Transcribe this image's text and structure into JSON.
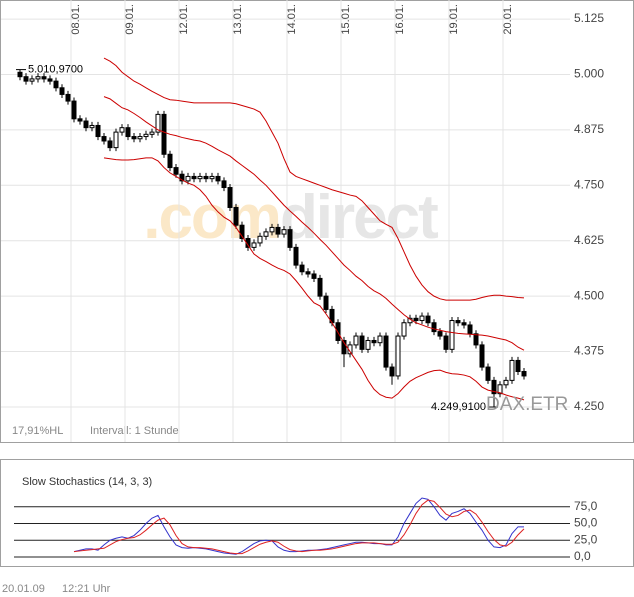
{
  "chart_data": [
    {
      "type": "candlestick",
      "categories": [
        null,
        null,
        null,
        null,
        null,
        null,
        null,
        null,
        null,
        "08.01.",
        null,
        null,
        null,
        null,
        null,
        null,
        null,
        null,
        "09.01.",
        null,
        null,
        null,
        null,
        null,
        null,
        null,
        null,
        "12.01.",
        null,
        null,
        null,
        null,
        null,
        null,
        null,
        null,
        "13.01.",
        null,
        null,
        null,
        null,
        null,
        null,
        null,
        null,
        "14.01.",
        null,
        null,
        null,
        null,
        null,
        null,
        null,
        null,
        "15.01.",
        null,
        null,
        null,
        null,
        null,
        null,
        null,
        null,
        "16.01.",
        null,
        null,
        null,
        null,
        null,
        null,
        null,
        null,
        "19.01.",
        null,
        null,
        null,
        null,
        null,
        null,
        null,
        null,
        "20.01.",
        null,
        null,
        null
      ],
      "open": [
        5005,
        4995,
        4985,
        4990,
        4995,
        4990,
        4985,
        4970,
        4955,
        4940,
        4900,
        4895,
        4880,
        4885,
        4860,
        4850,
        4835,
        4870,
        4880,
        4860,
        4855,
        4860,
        4865,
        4870,
        4910,
        4820,
        4790,
        4775,
        4760,
        4770,
        4765,
        4770,
        4765,
        4770,
        4760,
        4745,
        4700,
        4660,
        4630,
        4610,
        4620,
        4635,
        4645,
        4655,
        4640,
        4650,
        4610,
        4570,
        4555,
        4550,
        4540,
        4500,
        4470,
        4440,
        4400,
        4370,
        4390,
        4410,
        4380,
        4400,
        4395,
        4410,
        4340,
        4320,
        4410,
        4440,
        4450,
        4445,
        4455,
        4440,
        4420,
        4410,
        4380,
        4445,
        4440,
        4435,
        4415,
        4390,
        4340,
        4310,
        4280,
        4300,
        4310,
        4355,
        4330
      ],
      "high": [
        5010.97,
        5003,
        4998,
        5003,
        5003,
        4998,
        4993,
        4978,
        4963,
        4948,
        4908,
        4903,
        4893,
        4893,
        4868,
        4858,
        4878,
        4888,
        4888,
        4868,
        4868,
        4873,
        4878,
        4918,
        4918,
        4828,
        4798,
        4783,
        4778,
        4778,
        4778,
        4778,
        4778,
        4778,
        4768,
        4753,
        4708,
        4668,
        4638,
        4628,
        4643,
        4653,
        4663,
        4663,
        4658,
        4658,
        4618,
        4578,
        4563,
        4558,
        4548,
        4508,
        4478,
        4448,
        4408,
        4398,
        4418,
        4418,
        4408,
        4408,
        4418,
        4418,
        4348,
        4418,
        4448,
        4458,
        4458,
        4463,
        4463,
        4448,
        4428,
        4418,
        4453,
        4453,
        4448,
        4443,
        4423,
        4398,
        4348,
        4318,
        4308,
        4318,
        4363,
        4363,
        4338
      ],
      "low": [
        4987,
        4977,
        4977,
        4982,
        4982,
        4977,
        4962,
        4947,
        4932,
        4892,
        4887,
        4872,
        4872,
        4852,
        4842,
        4827,
        4827,
        4862,
        4852,
        4847,
        4847,
        4852,
        4857,
        4862,
        4812,
        4782,
        4767,
        4752,
        4752,
        4757,
        4757,
        4757,
        4757,
        4752,
        4737,
        4692,
        4652,
        4622,
        4602,
        4602,
        4612,
        4627,
        4637,
        4632,
        4632,
        4602,
        4562,
        4547,
        4542,
        4532,
        4492,
        4462,
        4432,
        4392,
        4340,
        4362,
        4382,
        4372,
        4372,
        4387,
        4387,
        4332,
        4300,
        4312,
        4402,
        4432,
        4437,
        4437,
        4432,
        4412,
        4402,
        4372,
        4372,
        4432,
        4427,
        4407,
        4382,
        4332,
        4302,
        4249.91,
        4272,
        4292,
        4302,
        4322,
        4312
      ],
      "close": [
        4995,
        4985,
        4990,
        4995,
        4990,
        4985,
        4970,
        4955,
        4940,
        4900,
        4895,
        4880,
        4885,
        4860,
        4850,
        4835,
        4870,
        4880,
        4860,
        4855,
        4860,
        4865,
        4870,
        4910,
        4820,
        4790,
        4775,
        4760,
        4770,
        4765,
        4770,
        4765,
        4770,
        4760,
        4745,
        4700,
        4660,
        4630,
        4610,
        4620,
        4635,
        4645,
        4655,
        4640,
        4650,
        4610,
        4570,
        4555,
        4550,
        4540,
        4500,
        4470,
        4440,
        4400,
        4370,
        4390,
        4410,
        4380,
        4400,
        4395,
        4410,
        4340,
        4320,
        4410,
        4440,
        4450,
        4445,
        4455,
        4440,
        4420,
        4410,
        4380,
        4445,
        4440,
        4435,
        4415,
        4390,
        4340,
        4310,
        4280,
        4300,
        4310,
        4355,
        4330,
        4320
      ],
      "series": [
        {
          "color": "#cc0000",
          "values": [
            null,
            null,
            null,
            null,
            null,
            null,
            null,
            null,
            null,
            null,
            null,
            null,
            null,
            null,
            5037,
            5030,
            5020,
            5005,
            4995,
            4985,
            4978,
            4970,
            4962,
            4955,
            4948,
            4943,
            4942,
            4940,
            4938,
            4936,
            4936,
            4936,
            4936,
            4936,
            4936,
            4936,
            4934,
            4930,
            4926,
            4922,
            4915,
            4895,
            4870,
            4845,
            4810,
            4780,
            4770,
            4765,
            4760,
            4755,
            4750,
            4745,
            4740,
            4736,
            4732,
            4728,
            4725,
            4715,
            4700,
            4685,
            4670,
            4662,
            4655,
            4630,
            4600,
            4570,
            4545,
            4525,
            4510,
            4500,
            4494,
            4491,
            4491,
            4491,
            4491,
            4491,
            4493,
            4497,
            4500,
            4502,
            4502,
            4500,
            4499,
            4497,
            4496
          ]
        },
        {
          "color": "#cc0000",
          "values": [
            null,
            null,
            null,
            null,
            null,
            null,
            null,
            null,
            null,
            null,
            null,
            null,
            null,
            null,
            4950,
            4945,
            4935,
            4925,
            4920,
            4912,
            4903,
            4893,
            4884,
            4875,
            4870,
            4865,
            4862,
            4858,
            4855,
            4852,
            4850,
            4845,
            4838,
            4830,
            4823,
            4816,
            4805,
            4795,
            4785,
            4775,
            4762,
            4750,
            4735,
            4720,
            4705,
            4692,
            4680,
            4667,
            4655,
            4642,
            4628,
            4615,
            4600,
            4585,
            4570,
            4558,
            4545,
            4535,
            4522,
            4512,
            4505,
            4495,
            4482,
            4470,
            4458,
            4448,
            4440,
            4435,
            4430,
            4426,
            4423,
            4420,
            4418,
            4416,
            4415,
            4414,
            4413,
            4412,
            4410,
            4407,
            4404,
            4401,
            4395,
            4385,
            4378
          ]
        },
        {
          "color": "#cc0000",
          "values": [
            null,
            null,
            null,
            null,
            null,
            null,
            null,
            null,
            null,
            null,
            null,
            null,
            null,
            null,
            4812,
            4810,
            4808,
            4807,
            4807,
            4808,
            4810,
            4812,
            4812,
            4805,
            4790,
            4778,
            4770,
            4762,
            4755,
            4750,
            4740,
            4725,
            4705,
            4690,
            4678,
            4670,
            4655,
            4635,
            4615,
            4595,
            4585,
            4578,
            4570,
            4563,
            4558,
            4550,
            4535,
            4518,
            4500,
            4485,
            4478,
            4460,
            4440,
            4418,
            4395,
            4375,
            4355,
            4335,
            4310,
            4290,
            4278,
            4272,
            4270,
            4280,
            4295,
            4308,
            4316,
            4322,
            4328,
            4332,
            4333,
            4328,
            4325,
            4324,
            4322,
            4318,
            4308,
            4295,
            4288,
            4285,
            4282,
            4277,
            4273,
            4270,
            4266
          ]
        }
      ],
      "ylim": [
        4171,
        5168
      ],
      "yticks": [
        {
          "value": 4250,
          "label": "4.250"
        },
        {
          "value": 4375,
          "label": "4.375"
        },
        {
          "value": 4500,
          "label": "4.500"
        },
        {
          "value": 4625,
          "label": "4.625"
        },
        {
          "value": 4750,
          "label": "4.750"
        },
        {
          "value": 4875,
          "label": "4.875"
        },
        {
          "value": 5000,
          "label": "5.000"
        },
        {
          "value": 5125,
          "label": "5.125"
        }
      ],
      "grid": true,
      "annotations": [
        {
          "value": 5010.97,
          "label": "5.010,9700"
        },
        {
          "value": 4249.91,
          "label": "4.249,9100"
        }
      ],
      "symbol": "DAX.ETR",
      "range_info": "17,91%HL",
      "interval": "Intervall: 1 Stunde",
      "watermark": [
        ".com",
        "direct"
      ]
    },
    {
      "type": "line",
      "title": "Slow Stochastics (14, 3, 3)",
      "series": [
        {
          "color": "#3333cc",
          "values": [
            null,
            null,
            null,
            null,
            null,
            null,
            null,
            null,
            null,
            8,
            10,
            12,
            12,
            10,
            18,
            25,
            28,
            30,
            28,
            32,
            40,
            50,
            58,
            62,
            45,
            30,
            18,
            14,
            13,
            14,
            13,
            12,
            10,
            8,
            6,
            5,
            4,
            8,
            14,
            20,
            24,
            25,
            24,
            15,
            10,
            8,
            8,
            9,
            10,
            10,
            11,
            12,
            14,
            16,
            18,
            20,
            22,
            22,
            21,
            20,
            20,
            18,
            18,
            30,
            50,
            65,
            80,
            88,
            86,
            75,
            62,
            55,
            65,
            68,
            72,
            65,
            52,
            40,
            25,
            15,
            14,
            18,
            35,
            45,
            45
          ]
        },
        {
          "color": "#dd2222",
          "values": [
            null,
            null,
            null,
            null,
            null,
            null,
            null,
            null,
            null,
            8,
            9,
            10,
            11,
            12,
            13,
            18,
            23,
            26,
            28,
            29,
            33,
            40,
            48,
            55,
            58,
            48,
            32,
            20,
            15,
            14,
            14,
            13,
            12,
            10,
            8,
            6,
            5,
            5,
            9,
            14,
            19,
            22,
            24,
            22,
            16,
            11,
            9,
            8,
            9,
            10,
            10,
            11,
            12,
            14,
            16,
            18,
            20,
            21,
            21,
            21,
            20,
            19,
            19,
            22,
            33,
            48,
            65,
            78,
            85,
            83,
            74,
            64,
            60,
            62,
            68,
            70,
            64,
            52,
            38,
            26,
            18,
            16,
            22,
            33,
            42
          ]
        }
      ],
      "ylim": [
        -12,
        100
      ],
      "yticks": [
        {
          "value": 0,
          "label": "0,0"
        },
        {
          "value": 25,
          "label": "25,0"
        },
        {
          "value": 50,
          "label": "50,0"
        },
        {
          "value": 75,
          "label": "75,0"
        }
      ],
      "grid": true
    }
  ],
  "footer": {
    "date": "20.01.09",
    "time": "12:21 Uhr"
  }
}
